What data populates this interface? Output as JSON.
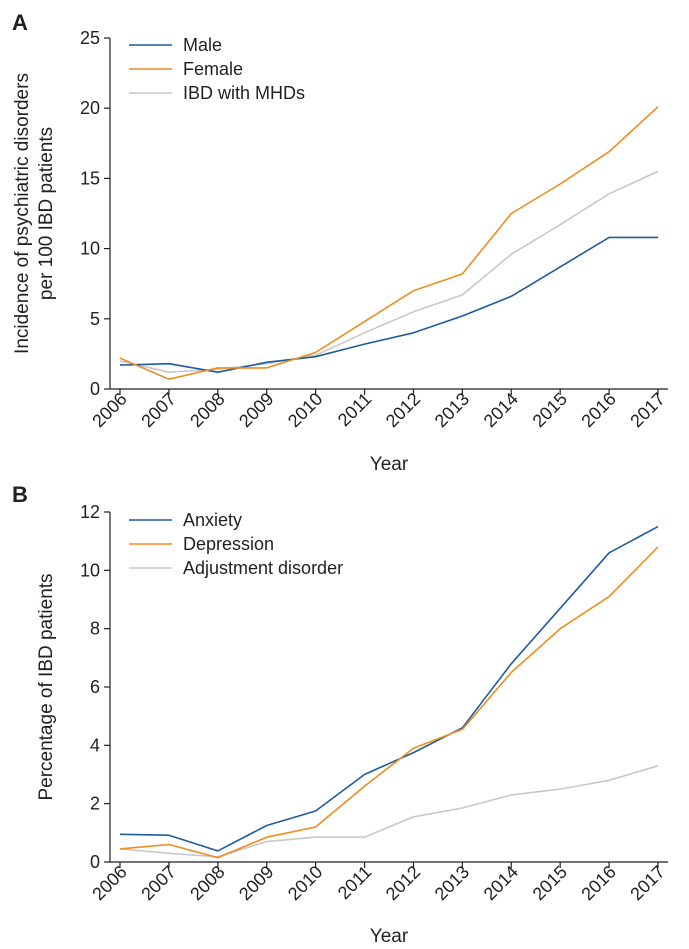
{
  "chart_data": [
    {
      "type": "line",
      "panel_label": "A",
      "xlabel": "Year",
      "ylabel_lines": [
        "Incidence of psychiatric disorders",
        "per 100 IBD patients"
      ],
      "categories": [
        "2006",
        "2007",
        "2008",
        "2009",
        "2010",
        "2011",
        "2012",
        "2013",
        "2014",
        "2015",
        "2016",
        "2017"
      ],
      "ylim": [
        0,
        25
      ],
      "yticks": [
        0,
        5,
        10,
        15,
        20,
        25
      ],
      "legend_position": "top-left",
      "series": [
        {
          "name": "Male",
          "color": "#1f5b9e",
          "values": [
            1.7,
            1.8,
            1.2,
            1.9,
            2.3,
            3.2,
            4.0,
            5.2,
            6.6,
            8.7,
            10.8,
            10.8
          ]
        },
        {
          "name": "Female",
          "color": "#f08c1e",
          "values": [
            2.2,
            0.7,
            1.5,
            1.5,
            2.6,
            4.8,
            7.0,
            8.2,
            12.5,
            14.6,
            16.9,
            20.1
          ]
        },
        {
          "name": "IBD with MHDs",
          "color": "#c8c8c8",
          "values": [
            2.0,
            1.2,
            1.4,
            1.8,
            2.4,
            4.0,
            5.5,
            6.7,
            9.6,
            11.7,
            13.9,
            15.5
          ]
        }
      ]
    },
    {
      "type": "line",
      "panel_label": "B",
      "xlabel": "Year",
      "ylabel_lines": [
        "Percentage of IBD patients"
      ],
      "categories": [
        "2006",
        "2007",
        "2008",
        "2009",
        "2010",
        "2011",
        "2012",
        "2013",
        "2014",
        "2015",
        "2016",
        "2017"
      ],
      "ylim": [
        0,
        12
      ],
      "yticks": [
        0,
        2,
        4,
        6,
        8,
        10,
        12
      ],
      "legend_position": "top-left",
      "series": [
        {
          "name": "Anxiety",
          "color": "#1f5b9e",
          "values": [
            0.95,
            0.92,
            0.38,
            1.25,
            1.75,
            3.0,
            3.75,
            4.6,
            6.8,
            8.7,
            10.6,
            11.5
          ]
        },
        {
          "name": "Depression",
          "color": "#f08c1e",
          "values": [
            0.45,
            0.6,
            0.15,
            0.85,
            1.2,
            2.6,
            3.9,
            4.55,
            6.5,
            8.0,
            9.1,
            10.8
          ]
        },
        {
          "name": "Adjustment disorder",
          "color": "#c8c8c8",
          "values": [
            0.45,
            0.3,
            0.18,
            0.7,
            0.85,
            0.85,
            1.55,
            1.85,
            2.3,
            2.5,
            2.8,
            3.3
          ]
        }
      ]
    }
  ]
}
